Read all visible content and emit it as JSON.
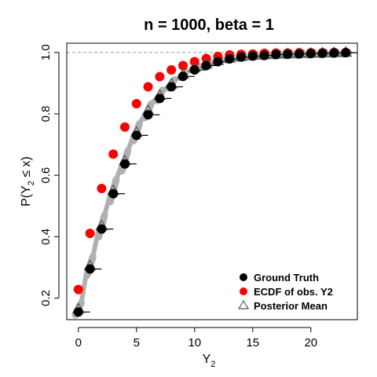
{
  "chart_data": {
    "type": "scatter",
    "title": "n = 1000, beta = 1",
    "xlabel_main": "Y",
    "xlabel_sub": "2",
    "ylabel_prefix": "P(Y",
    "ylabel_sub": "2",
    "ylabel_suffix": " ≤ x)",
    "xlim": [
      -1,
      24
    ],
    "ylim": [
      0.13,
      1.03
    ],
    "xticks": [
      0,
      5,
      10,
      15,
      20
    ],
    "yticks": [
      0.2,
      0.4,
      0.6,
      0.8,
      1.0
    ],
    "ytick_labels": [
      "0.2",
      "0.4",
      "0.6",
      "0.8",
      "1.0"
    ],
    "reference_line": 1.0,
    "legend_position": "bottom-right",
    "colors": {
      "ground_truth": "#000000",
      "ecdf": "#ff0000",
      "posterior_mean": "#555555",
      "posterior_samples": "#b0b0b0",
      "reference_line": "#999999"
    },
    "series": [
      {
        "name": "Ground Truth",
        "marker": "filled-circle",
        "x": [
          0,
          1,
          2,
          3,
          4,
          5,
          6,
          7,
          8,
          9,
          10,
          11,
          12,
          13,
          14,
          15,
          16,
          17,
          18,
          19,
          20,
          21,
          22,
          23
        ],
        "y": [
          0.155,
          0.295,
          0.425,
          0.54,
          0.637,
          0.73,
          0.797,
          0.85,
          0.888,
          0.922,
          0.943,
          0.957,
          0.97,
          0.979,
          0.985,
          0.988,
          0.99,
          0.993,
          0.994,
          0.995,
          0.996,
          0.997,
          0.998,
          0.999
        ]
      },
      {
        "name": "ECDF of obs. Y2",
        "marker": "filled-circle",
        "x": [
          0,
          1,
          2,
          3,
          4,
          5,
          6,
          7,
          8,
          9,
          10,
          11,
          12,
          13,
          14,
          15,
          16,
          17,
          18,
          19,
          20,
          21,
          22,
          23
        ],
        "y": [
          0.228,
          0.411,
          0.557,
          0.669,
          0.757,
          0.833,
          0.888,
          0.921,
          0.943,
          0.957,
          0.97,
          0.98,
          0.987,
          0.992,
          0.994,
          0.995,
          0.997,
          0.998,
          0.998,
          0.999,
          0.999,
          0.999,
          1.0,
          1.0
        ]
      },
      {
        "name": "Posterior Mean",
        "marker": "open-triangle",
        "x": [
          0,
          1,
          2,
          3,
          4,
          5,
          6,
          7,
          8,
          9,
          10,
          11,
          12,
          13,
          14,
          15,
          16,
          17,
          18,
          19,
          20,
          21,
          22,
          23
        ],
        "y": [
          0.165,
          0.305,
          0.435,
          0.55,
          0.647,
          0.74,
          0.81,
          0.86,
          0.897,
          0.928,
          0.95,
          0.962,
          0.973,
          0.981,
          0.986,
          0.99,
          0.992,
          0.994,
          0.995,
          0.996,
          0.997,
          0.998,
          0.999,
          1.0
        ]
      }
    ]
  }
}
